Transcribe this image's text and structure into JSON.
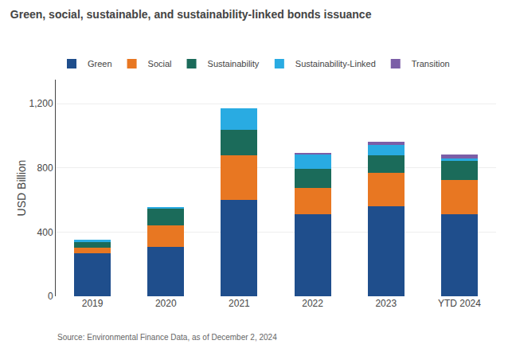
{
  "chart_data": {
    "type": "bar",
    "title": "Green, social, sustainable, and sustainability-linked bonds issuance",
    "categories": [
      "2019",
      "2020",
      "2021",
      "2022",
      "2023",
      "YTD 2024"
    ],
    "series": [
      {
        "name": "Green",
        "color": "#1F4E8C",
        "values": [
          270,
          310,
          600,
          510,
          560,
          510
        ]
      },
      {
        "name": "Social",
        "color": "#E87722",
        "values": [
          35,
          130,
          280,
          165,
          210,
          215
        ]
      },
      {
        "name": "Sustainability",
        "color": "#1B6B5A",
        "values": [
          35,
          105,
          155,
          120,
          110,
          120
        ]
      },
      {
        "name": "Sustainability-Linked",
        "color": "#29ABE2",
        "values": [
          10,
          10,
          135,
          90,
          65,
          15
        ]
      },
      {
        "name": "Transition",
        "color": "#7B5EA7",
        "values": [
          0,
          0,
          0,
          5,
          20,
          22
        ]
      }
    ],
    "ylabel": "USD Billion",
    "ylim": [
      0,
      1350
    ],
    "yticks": [
      0,
      400,
      800,
      {
        "value": 1200,
        "label": "1,200"
      }
    ],
    "stacked": true,
    "grid": true,
    "legend": "upper left",
    "annotations": [
      "Source: Environmental Finance Data, as of December 2, 2024"
    ]
  }
}
